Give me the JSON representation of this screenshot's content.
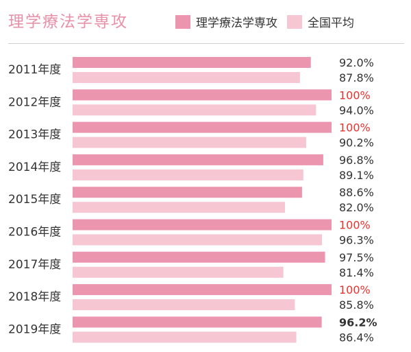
{
  "colors": {
    "series_major": "#eb95ae",
    "series_avg": "#f6c6d3",
    "highlight_text": "#e8322e",
    "normal_text": "#333333",
    "title_text": "#e890a8"
  },
  "chart_data": {
    "type": "bar",
    "orientation": "horizontal",
    "title": "理学療法学専攻",
    "xlim": [
      0,
      100
    ],
    "grid": false,
    "legend_position": "top-right",
    "categories": [
      "2011年度",
      "2012年度",
      "2013年度",
      "2014年度",
      "2015年度",
      "2016年度",
      "2017年度",
      "2018年度",
      "2019年度"
    ],
    "series": [
      {
        "name": "理学療法学専攻",
        "values": [
          92.0,
          100,
          100,
          96.8,
          88.6,
          100,
          97.5,
          100,
          96.2
        ],
        "labels": [
          "92.0%",
          "100%",
          "100%",
          "96.8%",
          "88.6%",
          "100%",
          "97.5%",
          "100%",
          "96.2%"
        ]
      },
      {
        "name": "全国平均",
        "values": [
          87.8,
          94.0,
          90.2,
          89.1,
          82.0,
          96.3,
          81.4,
          85.8,
          86.4
        ],
        "labels": [
          "87.8%",
          "94.0%",
          "90.2%",
          "89.1%",
          "82.0%",
          "96.3%",
          "81.4%",
          "85.8%",
          "86.4%"
        ]
      }
    ]
  }
}
